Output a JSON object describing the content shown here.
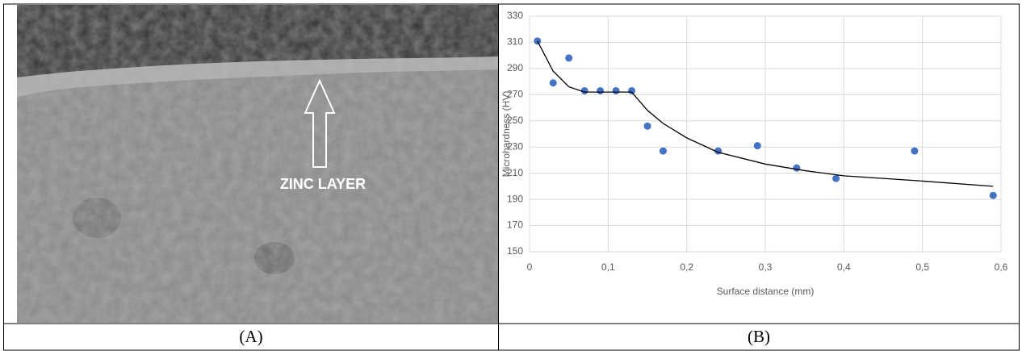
{
  "image_panel": {
    "annotation": "ZINC LAYER"
  },
  "captions": [
    "(A)",
    "(B)"
  ],
  "chart_data": {
    "type": "scatter",
    "xlabel": "Surface distance (mm)",
    "ylabel": "Microhardness (HV)",
    "xlim": [
      0,
      0.6
    ],
    "xticks": [
      0,
      {
        "value": 0.1,
        "label": "0,1"
      },
      {
        "value": 0.2,
        "label": "0,2"
      },
      {
        "value": 0.3,
        "label": "0,3"
      },
      {
        "value": 0.4,
        "label": "0,4"
      },
      {
        "value": 0.5,
        "label": "0,5"
      },
      {
        "value": 0.6,
        "label": "0,6"
      }
    ],
    "ylim": [
      150,
      330
    ],
    "yticks": [
      150,
      170,
      190,
      210,
      230,
      250,
      270,
      290,
      310,
      330
    ],
    "grid": true,
    "series": [
      {
        "mode": "markers",
        "color": "#4472c4",
        "x": [
          0.01,
          0.03,
          0.05,
          0.07,
          0.09,
          0.11,
          0.13,
          0.15,
          0.17,
          0.24,
          0.29,
          0.34,
          0.39,
          0.49,
          0.59
        ],
        "values": [
          311,
          279,
          298,
          273,
          273,
          273,
          273,
          246,
          227,
          227,
          231,
          214,
          206,
          227,
          193
        ]
      },
      {
        "mode": "line",
        "color": "#000000",
        "x": [
          0.01,
          0.03,
          0.05,
          0.07,
          0.13,
          0.15,
          0.17,
          0.2,
          0.24,
          0.3,
          0.35,
          0.4,
          0.5,
          0.59
        ],
        "values": [
          311,
          288,
          276,
          272,
          272,
          258,
          248,
          237,
          226,
          217,
          212,
          208,
          204,
          200
        ]
      }
    ]
  }
}
